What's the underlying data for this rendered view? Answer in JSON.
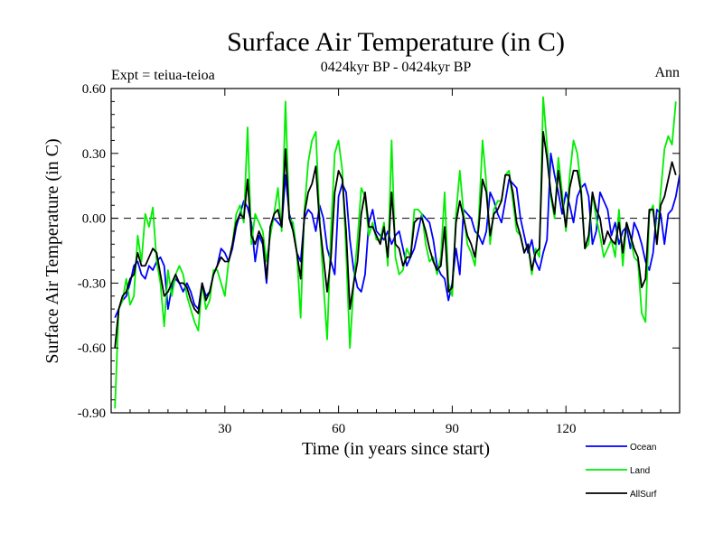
{
  "chart_data": {
    "type": "line",
    "title": "Surface Air Temperature (in C)",
    "subtitle": "0424kyr BP - 0424kyr BP",
    "left_label": "Expt = teiua-teioa",
    "right_label": "Ann",
    "xlabel": "Time (in years since start)",
    "ylabel": "Surface Air Temperature (in C)",
    "xlim": [
      0,
      150
    ],
    "ylim": [
      -0.9,
      0.6
    ],
    "xticks": [
      30,
      60,
      90,
      120
    ],
    "xtick_labels": [
      "30",
      "60",
      "90",
      "120"
    ],
    "yticks": [
      -0.9,
      -0.6,
      -0.3,
      0.0,
      0.3,
      0.6
    ],
    "ytick_labels": [
      "-0.90",
      "-0.60",
      "-0.30",
      "0.00",
      "0.30",
      "0.60"
    ],
    "reference_line": 0.0,
    "legend_position": "bottom-right",
    "series": [
      {
        "name": "Ocean",
        "color": "#0000ff",
        "values": [
          -0.46,
          -0.42,
          -0.38,
          -0.36,
          -0.3,
          -0.22,
          -0.2,
          -0.26,
          -0.28,
          -0.22,
          -0.24,
          -0.2,
          -0.18,
          -0.22,
          -0.42,
          -0.32,
          -0.28,
          -0.3,
          -0.34,
          -0.3,
          -0.34,
          -0.4,
          -0.42,
          -0.3,
          -0.36,
          -0.34,
          -0.26,
          -0.22,
          -0.14,
          -0.16,
          -0.2,
          -0.14,
          -0.04,
          0.02,
          0.08,
          0.05,
          -0.02,
          -0.2,
          -0.08,
          -0.12,
          -0.3,
          -0.04,
          0.0,
          -0.02,
          -0.04,
          0.2,
          0.02,
          -0.04,
          -0.16,
          -0.2,
          0.0,
          0.04,
          0.02,
          -0.06,
          0.06,
          0.0,
          -0.14,
          -0.2,
          -0.26,
          0.1,
          0.16,
          0.12,
          -0.1,
          -0.24,
          -0.32,
          -0.34,
          -0.26,
          -0.02,
          0.04,
          -0.06,
          -0.08,
          -0.1,
          -0.06,
          -0.12,
          -0.08,
          -0.06,
          -0.14,
          -0.22,
          -0.18,
          -0.14,
          -0.06,
          0.02,
          0.0,
          -0.02,
          -0.1,
          -0.22,
          -0.26,
          -0.28,
          -0.38,
          -0.3,
          -0.14,
          -0.26,
          0.04,
          0.02,
          0.0,
          -0.06,
          -0.08,
          -0.12,
          -0.06,
          0.12,
          0.08,
          0.02,
          -0.02,
          0.08,
          0.18,
          0.16,
          0.14,
          0.0,
          -0.08,
          -0.16,
          -0.1,
          -0.2,
          -0.24,
          -0.16,
          -0.1,
          0.3,
          0.2,
          0.12,
          0.02,
          0.12,
          0.06,
          -0.02,
          0.1,
          0.14,
          0.16,
          0.1,
          -0.12,
          -0.06,
          0.12,
          0.08,
          0.04,
          -0.08,
          -0.02,
          -0.12,
          -0.06,
          -0.04,
          -0.14,
          -0.02,
          -0.06,
          -0.12,
          -0.2,
          -0.24,
          -0.16,
          0.04,
          0.02,
          -0.12,
          0.02,
          0.04,
          0.1,
          0.2,
          0.06
        ]
      },
      {
        "name": "Land",
        "color": "#00ee00",
        "values": [
          -0.88,
          -0.42,
          -0.38,
          -0.28,
          -0.4,
          -0.36,
          -0.08,
          -0.2,
          0.02,
          -0.04,
          0.05,
          -0.2,
          -0.3,
          -0.5,
          -0.24,
          -0.36,
          -0.26,
          -0.22,
          -0.26,
          -0.36,
          -0.42,
          -0.48,
          -0.52,
          -0.3,
          -0.42,
          -0.38,
          -0.24,
          -0.24,
          -0.3,
          -0.36,
          -0.2,
          -0.12,
          0.02,
          0.06,
          -0.02,
          0.42,
          -0.12,
          0.02,
          -0.02,
          -0.06,
          -0.2,
          -0.08,
          0.02,
          0.14,
          -0.06,
          0.54,
          0.0,
          -0.02,
          -0.16,
          -0.46,
          0.04,
          0.26,
          0.36,
          0.4,
          0.0,
          -0.3,
          -0.56,
          -0.06,
          0.3,
          0.36,
          0.22,
          -0.16,
          -0.6,
          -0.3,
          -0.1,
          0.14,
          0.1,
          -0.08,
          -0.02,
          -0.1,
          -0.1,
          -0.02,
          -0.22,
          0.36,
          -0.18,
          -0.26,
          -0.24,
          -0.14,
          -0.18,
          0.04,
          0.04,
          0.02,
          -0.12,
          -0.2,
          -0.18,
          -0.26,
          -0.18,
          0.12,
          -0.3,
          -0.36,
          0.02,
          0.22,
          0.02,
          -0.12,
          -0.16,
          -0.22,
          0.0,
          0.36,
          0.16,
          -0.12,
          0.04,
          0.08,
          0.08,
          0.2,
          0.22,
          0.08,
          -0.06,
          -0.08,
          -0.16,
          -0.12,
          -0.26,
          -0.14,
          -0.18,
          0.56,
          0.34,
          0.1,
          0.0,
          0.28,
          0.12,
          -0.06,
          0.2,
          0.36,
          0.3,
          0.14,
          -0.14,
          -0.12,
          0.12,
          0.0,
          -0.08,
          -0.18,
          -0.14,
          -0.1,
          -0.18,
          0.04,
          -0.22,
          -0.02,
          -0.08,
          -0.18,
          -0.2,
          -0.44,
          -0.48,
          0.02,
          0.06,
          -0.12,
          0.12,
          0.32,
          0.38,
          0.34,
          0.54
        ]
      },
      {
        "name": "AllSurf",
        "color": "#000000",
        "values": [
          -0.6,
          -0.42,
          -0.36,
          -0.34,
          -0.28,
          -0.26,
          -0.16,
          -0.22,
          -0.22,
          -0.18,
          -0.14,
          -0.16,
          -0.26,
          -0.36,
          -0.34,
          -0.3,
          -0.26,
          -0.3,
          -0.3,
          -0.32,
          -0.38,
          -0.42,
          -0.44,
          -0.3,
          -0.38,
          -0.34,
          -0.26,
          -0.22,
          -0.18,
          -0.2,
          -0.2,
          -0.12,
          -0.02,
          0.02,
          0.0,
          0.18,
          -0.08,
          -0.12,
          -0.06,
          -0.1,
          -0.28,
          -0.04,
          0.02,
          0.04,
          -0.04,
          0.32,
          0.0,
          -0.06,
          -0.16,
          -0.28,
          0.02,
          0.12,
          0.16,
          0.24,
          -0.02,
          -0.18,
          -0.34,
          -0.18,
          0.12,
          0.22,
          0.18,
          -0.06,
          -0.42,
          -0.3,
          -0.2,
          0.02,
          0.12,
          -0.04,
          -0.04,
          -0.08,
          -0.12,
          -0.04,
          -0.18,
          0.12,
          -0.12,
          -0.14,
          -0.22,
          -0.18,
          -0.18,
          -0.02,
          0.0,
          0.0,
          -0.06,
          -0.14,
          -0.2,
          -0.24,
          -0.22,
          -0.04,
          -0.34,
          -0.32,
          -0.02,
          0.08,
          0.0,
          -0.08,
          -0.12,
          -0.18,
          -0.04,
          0.18,
          0.12,
          -0.08,
          0.02,
          0.04,
          0.08,
          0.2,
          0.2,
          0.12,
          -0.02,
          -0.08,
          -0.16,
          -0.12,
          -0.24,
          -0.16,
          -0.14,
          0.4,
          0.28,
          0.12,
          0.02,
          0.22,
          0.08,
          -0.04,
          0.14,
          0.22,
          0.22,
          0.12,
          -0.14,
          -0.08,
          0.12,
          0.04,
          0.0,
          -0.12,
          -0.06,
          -0.1,
          -0.12,
          -0.02,
          -0.16,
          -0.02,
          -0.08,
          -0.14,
          -0.18,
          -0.32,
          -0.28,
          0.04,
          0.04,
          -0.12,
          0.06,
          0.1,
          0.18,
          0.26,
          0.2
        ]
      }
    ]
  }
}
